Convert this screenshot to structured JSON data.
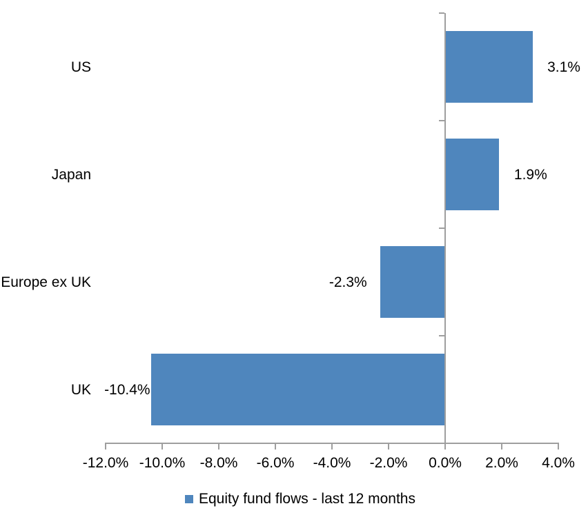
{
  "chart_data": {
    "type": "bar",
    "orientation": "horizontal",
    "title": "",
    "categories": [
      "US",
      "Japan",
      "Europe ex UK",
      "UK"
    ],
    "values": [
      3.1,
      1.9,
      -2.3,
      -10.4
    ],
    "value_labels": [
      "3.1%",
      "1.9%",
      "-2.3%",
      "-10.4%"
    ],
    "x_axis": {
      "min": -12.0,
      "max": 4.0,
      "tick_step": 2.0,
      "tick_labels": [
        "-12.0%",
        "-10.0%",
        "-8.0%",
        "-6.0%",
        "-4.0%",
        "-2.0%",
        "0.0%",
        "2.0%",
        "4.0%"
      ]
    },
    "grid": false,
    "legend": {
      "position": "bottom",
      "entries": [
        "Equity fund flows - last 12 months"
      ]
    },
    "colors": {
      "bar_fill": "#4f86bd",
      "axis_line": "#9e9e9e",
      "text": "#000000"
    }
  }
}
